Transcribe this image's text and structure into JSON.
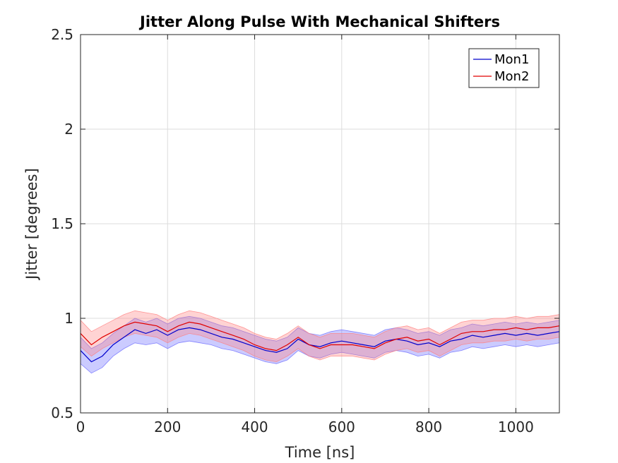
{
  "chart_data": {
    "type": "line",
    "title": "Jitter Along Pulse With Mechanical Shifters",
    "xlabel": "Time [ns]",
    "ylabel": "Jitter [degrees]",
    "xlim": [
      0,
      1100
    ],
    "ylim": [
      0.5,
      2.5
    ],
    "xticks": [
      0,
      200,
      400,
      600,
      800,
      1000
    ],
    "yticks": [
      0.5,
      1,
      1.5,
      2,
      2.5
    ],
    "xtick_labels": [
      "0",
      "200",
      "400",
      "600",
      "800",
      "1000"
    ],
    "ytick_labels": [
      "0.5",
      "1",
      "1.5",
      "2",
      "2.5"
    ],
    "grid": true,
    "legend_position": "top-right",
    "x": [
      0,
      25,
      50,
      75,
      100,
      125,
      150,
      175,
      200,
      225,
      250,
      275,
      300,
      325,
      350,
      375,
      400,
      425,
      450,
      475,
      500,
      525,
      550,
      575,
      600,
      625,
      650,
      675,
      700,
      725,
      750,
      775,
      800,
      825,
      850,
      875,
      900,
      925,
      950,
      975,
      1000,
      1025,
      1050,
      1075,
      1100
    ],
    "series": [
      {
        "name": "Mon1",
        "color": "#0000cc",
        "band_color": "#6b6bff",
        "values": [
          0.83,
          0.77,
          0.8,
          0.86,
          0.9,
          0.94,
          0.92,
          0.94,
          0.91,
          0.94,
          0.95,
          0.94,
          0.92,
          0.9,
          0.89,
          0.87,
          0.85,
          0.83,
          0.82,
          0.84,
          0.89,
          0.86,
          0.85,
          0.87,
          0.88,
          0.87,
          0.86,
          0.85,
          0.88,
          0.89,
          0.88,
          0.86,
          0.87,
          0.85,
          0.88,
          0.89,
          0.91,
          0.9,
          0.91,
          0.92,
          0.91,
          0.92,
          0.91,
          0.92,
          0.93
        ],
        "lower": [
          0.76,
          0.71,
          0.74,
          0.8,
          0.84,
          0.87,
          0.86,
          0.87,
          0.84,
          0.87,
          0.88,
          0.87,
          0.86,
          0.84,
          0.83,
          0.81,
          0.79,
          0.77,
          0.76,
          0.78,
          0.83,
          0.8,
          0.79,
          0.81,
          0.82,
          0.81,
          0.8,
          0.79,
          0.82,
          0.83,
          0.82,
          0.8,
          0.81,
          0.79,
          0.82,
          0.83,
          0.85,
          0.84,
          0.85,
          0.86,
          0.85,
          0.86,
          0.85,
          0.86,
          0.87
        ],
        "upper": [
          0.9,
          0.84,
          0.87,
          0.92,
          0.96,
          1.0,
          0.98,
          1.0,
          0.97,
          1.0,
          1.01,
          1.0,
          0.98,
          0.96,
          0.95,
          0.93,
          0.91,
          0.89,
          0.88,
          0.9,
          0.95,
          0.92,
          0.91,
          0.93,
          0.94,
          0.93,
          0.92,
          0.91,
          0.94,
          0.95,
          0.94,
          0.92,
          0.93,
          0.91,
          0.94,
          0.95,
          0.97,
          0.96,
          0.97,
          0.98,
          0.97,
          0.98,
          0.97,
          0.98,
          0.99
        ]
      },
      {
        "name": "Mon2",
        "color": "#e00000",
        "band_color": "#ff8080",
        "values": [
          0.92,
          0.86,
          0.9,
          0.93,
          0.96,
          0.98,
          0.97,
          0.96,
          0.93,
          0.96,
          0.98,
          0.97,
          0.95,
          0.93,
          0.91,
          0.89,
          0.86,
          0.84,
          0.83,
          0.86,
          0.9,
          0.86,
          0.84,
          0.86,
          0.86,
          0.86,
          0.85,
          0.84,
          0.87,
          0.89,
          0.9,
          0.88,
          0.89,
          0.86,
          0.89,
          0.92,
          0.93,
          0.93,
          0.94,
          0.94,
          0.95,
          0.94,
          0.95,
          0.95,
          0.96
        ],
        "lower": [
          0.85,
          0.8,
          0.84,
          0.87,
          0.9,
          0.92,
          0.91,
          0.9,
          0.87,
          0.9,
          0.92,
          0.91,
          0.89,
          0.87,
          0.85,
          0.83,
          0.8,
          0.78,
          0.77,
          0.8,
          0.84,
          0.8,
          0.78,
          0.8,
          0.8,
          0.8,
          0.79,
          0.78,
          0.81,
          0.83,
          0.84,
          0.82,
          0.83,
          0.8,
          0.83,
          0.86,
          0.87,
          0.87,
          0.88,
          0.88,
          0.89,
          0.88,
          0.89,
          0.89,
          0.9
        ],
        "upper": [
          0.99,
          0.93,
          0.96,
          0.99,
          1.02,
          1.04,
          1.03,
          1.02,
          0.99,
          1.02,
          1.04,
          1.03,
          1.01,
          0.99,
          0.97,
          0.95,
          0.92,
          0.9,
          0.89,
          0.92,
          0.96,
          0.92,
          0.9,
          0.92,
          0.92,
          0.92,
          0.91,
          0.9,
          0.93,
          0.95,
          0.96,
          0.94,
          0.95,
          0.92,
          0.95,
          0.98,
          0.99,
          0.99,
          1.0,
          1.0,
          1.01,
          1.0,
          1.01,
          1.01,
          1.02
        ]
      }
    ]
  }
}
